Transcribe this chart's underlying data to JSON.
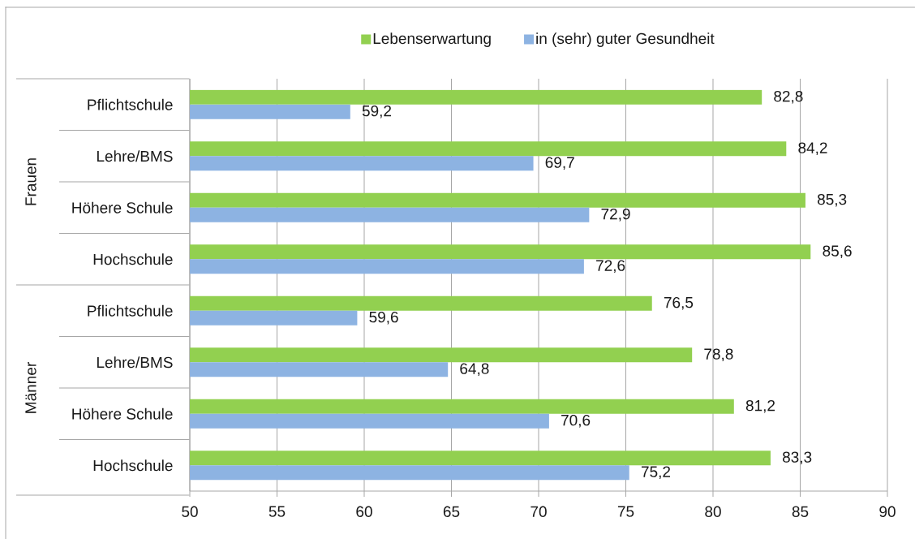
{
  "chart_data": {
    "type": "bar",
    "orientation": "horizontal",
    "categories": [
      "Pflichtschule",
      "Lehre/BMS",
      "Höhere Schule",
      "Hochschule",
      "Pflichtschule",
      "Lehre/BMS",
      "Höhere Schule",
      "Hochschule"
    ],
    "series": [
      {
        "name": "Lebenserwartung",
        "color": "#92d050",
        "values": [
          82.8,
          84.2,
          85.3,
          85.6,
          76.5,
          78.8,
          81.2,
          83.3
        ],
        "value_labels": [
          "82,8",
          "84,2",
          "85,3",
          "85,6",
          "76,5",
          "78,8",
          "81,2",
          "83,3"
        ]
      },
      {
        "name": "in (sehr) guter Gesundheit",
        "color": "#8db3e2",
        "values": [
          59.2,
          69.7,
          72.9,
          72.6,
          59.6,
          64.8,
          70.6,
          75.2
        ],
        "value_labels": [
          "59,2",
          "69,7",
          "72,9",
          "72,6",
          "59,6",
          "64,8",
          "70,6",
          "75,2"
        ]
      }
    ],
    "xlim": [
      50,
      90
    ],
    "xticks": [
      50,
      55,
      60,
      65,
      70,
      75,
      80,
      85,
      90
    ],
    "grid": "x",
    "legend": "top",
    "annotations": [
      "Frauen",
      "Männer"
    ]
  }
}
